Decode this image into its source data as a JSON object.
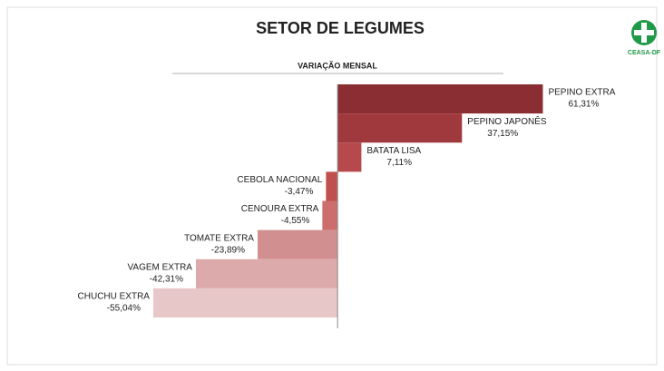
{
  "chart_data": {
    "type": "hbar",
    "title": "SETOR DE LEGUMES",
    "subtitle": "VARIAÇÃO MENSAL",
    "logo": "CEASA-DF",
    "categories": [
      "PEPINO EXTRA",
      "PEPINO JAPONÊS",
      "BATATA LISA",
      "CEBOLA NACIONAL",
      "CENOURA EXTRA",
      "TOMATE EXTRA",
      "VAGEM EXTRA",
      "CHUCHU EXTRA"
    ],
    "values": [
      61.31,
      37.15,
      7.11,
      -3.47,
      -4.55,
      -23.89,
      -42.31,
      -55.04
    ],
    "value_labels": [
      "61,31%",
      "37,15%",
      "7,11%",
      "-3,47%",
      "-4,55%",
      "-23,89%",
      "-42,31%",
      "-55,04%"
    ],
    "colors": [
      "#8b2e33",
      "#a0393d",
      "#b5494b",
      "#c0504d",
      "#cc6e6c",
      "#d28f8f",
      "#dcaaab",
      "#e8c7c8"
    ],
    "xlim": [
      -74,
      75
    ]
  }
}
